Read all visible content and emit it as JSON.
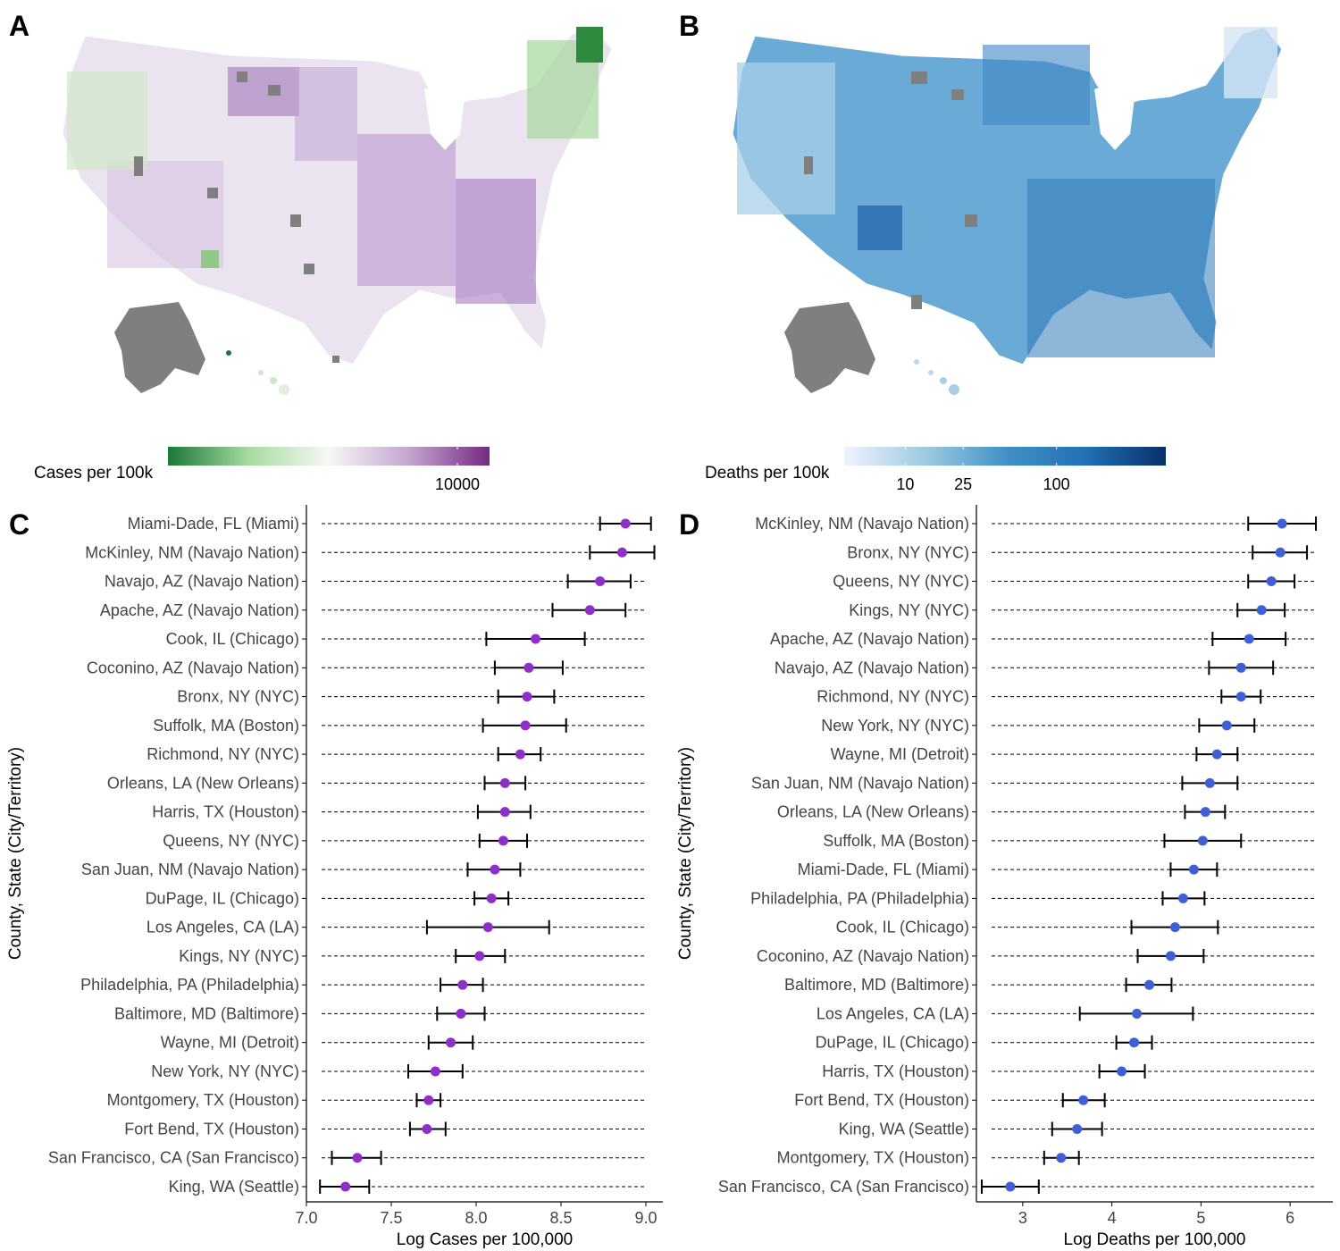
{
  "figure": {
    "panel_labels": [
      "A",
      "B",
      "C",
      "D"
    ]
  },
  "colors": {
    "dot_cases": "#8E2FC9",
    "dot_deaths": "#3F5FD6",
    "missing_county": "#7f7f7f",
    "cases_scale": [
      "#1b7837",
      "#a6dba0",
      "#f7f7f7",
      "#c2a5cf",
      "#762a83"
    ],
    "deaths_scale": [
      "#eff3ff",
      "#9ecae1",
      "#4292c6",
      "#2171b5",
      "#08306b"
    ]
  },
  "maps": [
    {
      "panel": "A",
      "legend_title": "Cases per 100k",
      "legend_ticks": [
        "10000"
      ],
      "palette": "cases_scale",
      "tick_positions": [
        0.9
      ]
    },
    {
      "panel": "B",
      "legend_title": "Deaths per 100k",
      "legend_ticks": [
        "10",
        "25",
        "100"
      ],
      "palette": "deaths_scale",
      "tick_positions": [
        0.19,
        0.37,
        0.66
      ]
    }
  ],
  "chart_data": [
    {
      "panel": "C",
      "type": "scatter",
      "xlabel": "Log Cases per 100,000",
      "ylabel": "County, State (City/Territory)",
      "xlim": [
        7.0,
        9.1
      ],
      "xticks": [
        7.0,
        7.5,
        8.0,
        8.5,
        9.0
      ],
      "xtick_labels": [
        "7.0",
        "7.5",
        "8.0",
        "8.5",
        "9.0"
      ],
      "grid": "dashed horizontal line per row",
      "rows": [
        {
          "label": "Miami-Dade, FL (Miami)",
          "value": 8.88,
          "lo": 8.73,
          "hi": 9.03
        },
        {
          "label": "McKinley, NM (Navajo Nation)",
          "value": 8.86,
          "lo": 8.67,
          "hi": 9.05
        },
        {
          "label": "Navajo, AZ (Navajo Nation)",
          "value": 8.73,
          "lo": 8.54,
          "hi": 8.91
        },
        {
          "label": "Apache, AZ (Navajo Nation)",
          "value": 8.67,
          "lo": 8.45,
          "hi": 8.88
        },
        {
          "label": "Cook, IL (Chicago)",
          "value": 8.35,
          "lo": 8.06,
          "hi": 8.64
        },
        {
          "label": "Coconino, AZ (Navajo Nation)",
          "value": 8.31,
          "lo": 8.11,
          "hi": 8.51
        },
        {
          "label": "Bronx, NY (NYC)",
          "value": 8.3,
          "lo": 8.13,
          "hi": 8.46
        },
        {
          "label": "Suffolk, MA (Boston)",
          "value": 8.29,
          "lo": 8.04,
          "hi": 8.53
        },
        {
          "label": "Richmond, NY (NYC)",
          "value": 8.26,
          "lo": 8.13,
          "hi": 8.38
        },
        {
          "label": "Orleans, LA (New Orleans)",
          "value": 8.17,
          "lo": 8.05,
          "hi": 8.29
        },
        {
          "label": "Harris, TX (Houston)",
          "value": 8.17,
          "lo": 8.01,
          "hi": 8.32
        },
        {
          "label": "Queens, NY (NYC)",
          "value": 8.16,
          "lo": 8.02,
          "hi": 8.3
        },
        {
          "label": "San Juan, NM (Navajo Nation)",
          "value": 8.11,
          "lo": 7.95,
          "hi": 8.26
        },
        {
          "label": "DuPage, IL (Chicago)",
          "value": 8.09,
          "lo": 7.99,
          "hi": 8.19
        },
        {
          "label": "Los Angeles, CA (LA)",
          "value": 8.07,
          "lo": 7.71,
          "hi": 8.43
        },
        {
          "label": "Kings, NY (NYC)",
          "value": 8.02,
          "lo": 7.88,
          "hi": 8.17
        },
        {
          "label": "Philadelphia, PA (Philadelphia)",
          "value": 7.92,
          "lo": 7.79,
          "hi": 8.04
        },
        {
          "label": "Baltimore, MD (Baltimore)",
          "value": 7.91,
          "lo": 7.77,
          "hi": 8.05
        },
        {
          "label": "Wayne, MI (Detroit)",
          "value": 7.85,
          "lo": 7.72,
          "hi": 7.98
        },
        {
          "label": "New York, NY (NYC)",
          "value": 7.76,
          "lo": 7.6,
          "hi": 7.92
        },
        {
          "label": "Montgomery, TX (Houston)",
          "value": 7.72,
          "lo": 7.65,
          "hi": 7.79
        },
        {
          "label": "Fort Bend, TX (Houston)",
          "value": 7.71,
          "lo": 7.61,
          "hi": 7.82
        },
        {
          "label": "San Francisco, CA (San Francisco)",
          "value": 7.3,
          "lo": 7.15,
          "hi": 7.44
        },
        {
          "label": "King, WA (Seattle)",
          "value": 7.23,
          "lo": 7.08,
          "hi": 7.37
        }
      ]
    },
    {
      "panel": "D",
      "type": "scatter",
      "xlabel": "Log Deaths per 100,000",
      "ylabel": "County, State (City/Territory)",
      "xlim": [
        2.48,
        6.48
      ],
      "xticks": [
        3,
        4,
        5,
        6
      ],
      "xtick_labels": [
        "3",
        "4",
        "5",
        "6"
      ],
      "grid": "dashed horizontal line per row",
      "rows": [
        {
          "label": "McKinley, NM (Navajo Nation)",
          "value": 5.91,
          "lo": 5.53,
          "hi": 6.29
        },
        {
          "label": "Bronx, NY (NYC)",
          "value": 5.89,
          "lo": 5.58,
          "hi": 6.19
        },
        {
          "label": "Queens, NY (NYC)",
          "value": 5.79,
          "lo": 5.53,
          "hi": 6.05
        },
        {
          "label": "Kings, NY (NYC)",
          "value": 5.68,
          "lo": 5.41,
          "hi": 5.94
        },
        {
          "label": "Apache, AZ (Navajo Nation)",
          "value": 5.54,
          "lo": 5.13,
          "hi": 5.95
        },
        {
          "label": "Navajo, AZ (Navajo Nation)",
          "value": 5.45,
          "lo": 5.09,
          "hi": 5.81
        },
        {
          "label": "Richmond, NY (NYC)",
          "value": 5.45,
          "lo": 5.23,
          "hi": 5.67
        },
        {
          "label": "New York, NY (NYC)",
          "value": 5.29,
          "lo": 4.98,
          "hi": 5.6
        },
        {
          "label": "Wayne, MI (Detroit)",
          "value": 5.18,
          "lo": 4.95,
          "hi": 5.41
        },
        {
          "label": "San Juan, NM (Navajo Nation)",
          "value": 5.1,
          "lo": 4.79,
          "hi": 5.41
        },
        {
          "label": "Orleans, LA (New Orleans)",
          "value": 5.05,
          "lo": 4.82,
          "hi": 5.27
        },
        {
          "label": "Suffolk, MA (Boston)",
          "value": 5.02,
          "lo": 4.59,
          "hi": 5.45
        },
        {
          "label": "Miami-Dade, FL (Miami)",
          "value": 4.92,
          "lo": 4.66,
          "hi": 5.18
        },
        {
          "label": "Philadelphia, PA (Philadelphia)",
          "value": 4.8,
          "lo": 4.57,
          "hi": 5.04
        },
        {
          "label": "Cook, IL (Chicago)",
          "value": 4.71,
          "lo": 4.22,
          "hi": 5.19
        },
        {
          "label": "Coconino, AZ (Navajo Nation)",
          "value": 4.66,
          "lo": 4.29,
          "hi": 5.03
        },
        {
          "label": "Baltimore, MD (Baltimore)",
          "value": 4.42,
          "lo": 4.16,
          "hi": 4.67
        },
        {
          "label": "Los Angeles, CA (LA)",
          "value": 4.28,
          "lo": 3.64,
          "hi": 4.91
        },
        {
          "label": "DuPage, IL (Chicago)",
          "value": 4.25,
          "lo": 4.05,
          "hi": 4.45
        },
        {
          "label": "Harris, TX (Houston)",
          "value": 4.11,
          "lo": 3.86,
          "hi": 4.37
        },
        {
          "label": "Fort Bend, TX (Houston)",
          "value": 3.68,
          "lo": 3.45,
          "hi": 3.92
        },
        {
          "label": "King, WA (Seattle)",
          "value": 3.61,
          "lo": 3.33,
          "hi": 3.89
        },
        {
          "label": "Montgomery, TX (Houston)",
          "value": 3.43,
          "lo": 3.24,
          "hi": 3.63
        },
        {
          "label": "San Francisco, CA (San Francisco)",
          "value": 2.86,
          "lo": 2.54,
          "hi": 3.18
        }
      ]
    }
  ]
}
